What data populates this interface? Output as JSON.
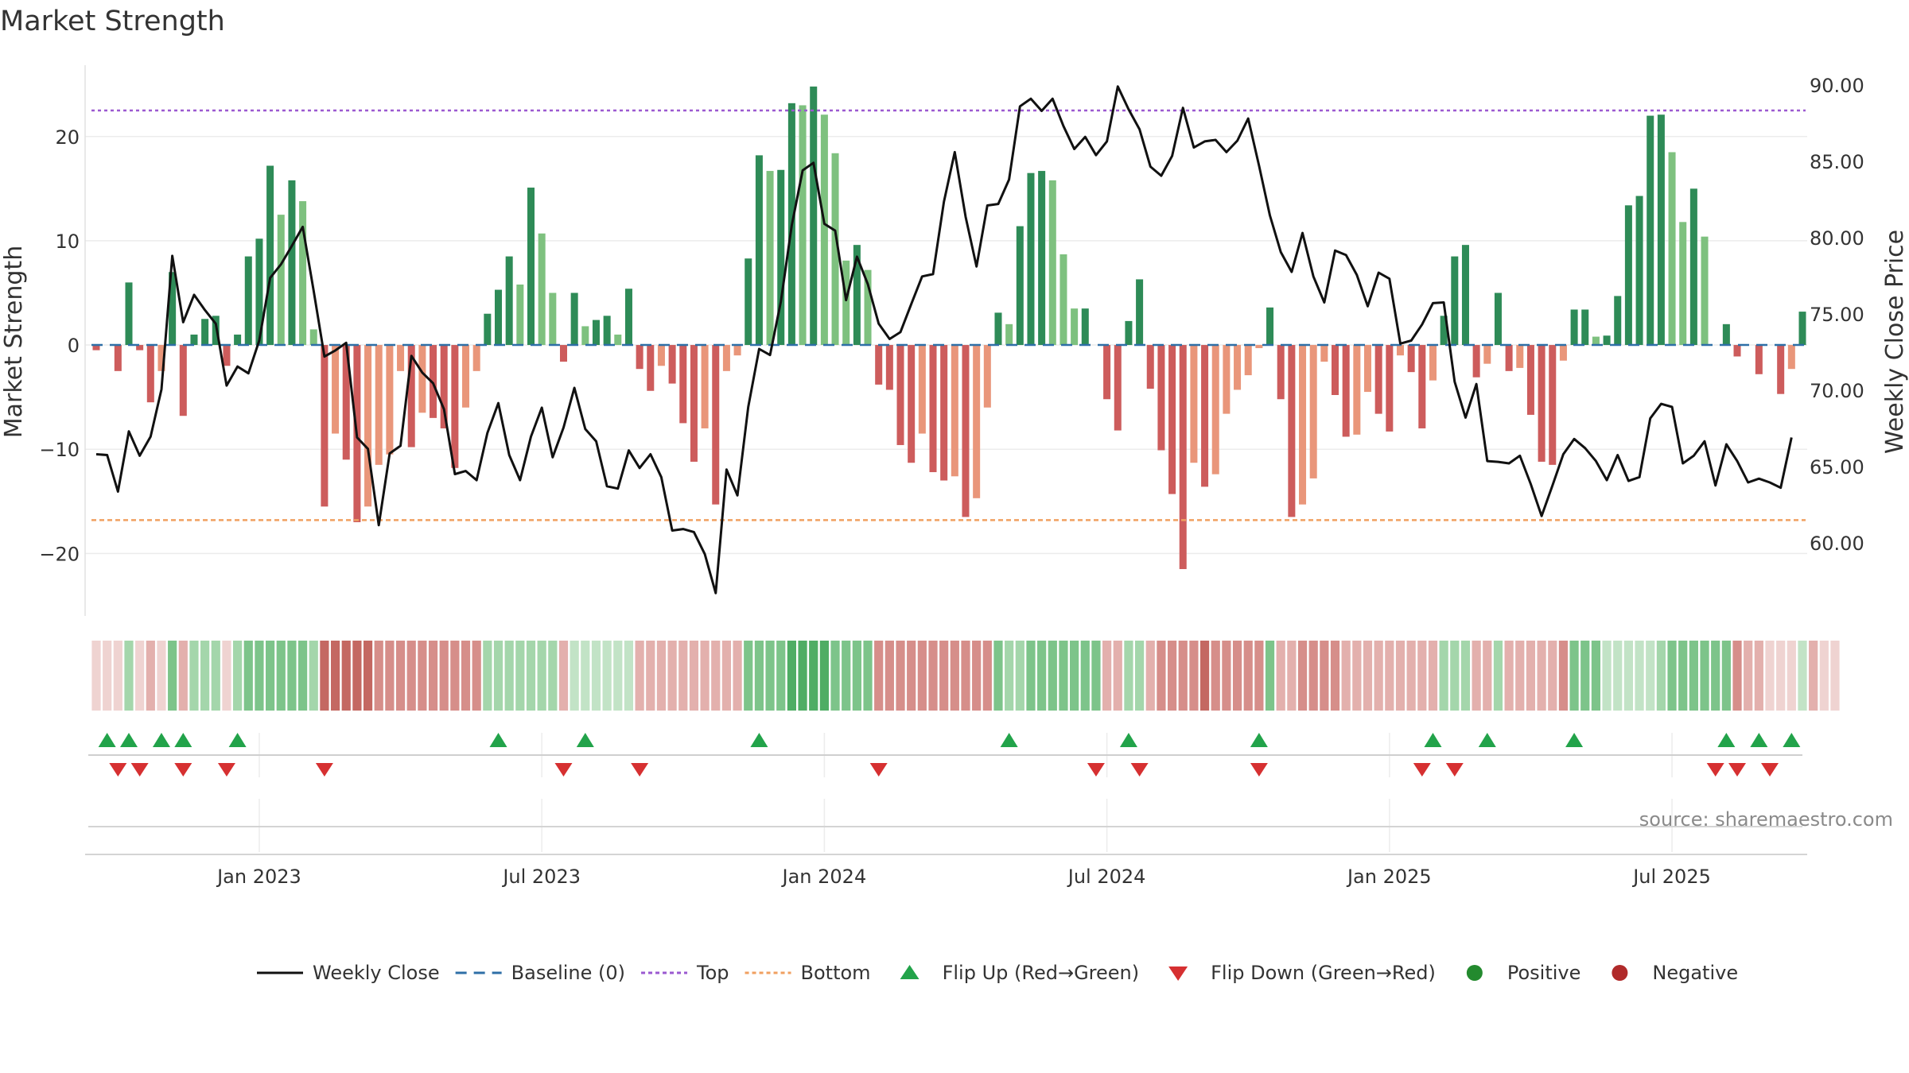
{
  "chart_data": {
    "type": "bar",
    "title": "Market Strength",
    "ylabel_left": "Market Strength",
    "ylabel_right": "Weekly Close Price",
    "source": "source: sharemaestro.com",
    "left_ylim": [
      -26,
      27
    ],
    "left_yticks": [
      20,
      10,
      0,
      -10,
      -20
    ],
    "left_ytick_labels": [
      "20",
      "10",
      "0",
      "−10",
      "−20"
    ],
    "right_ylim": [
      55.2,
      91.4
    ],
    "right_yticks": [
      90,
      85,
      80,
      75,
      70,
      65,
      60
    ],
    "right_ytick_labels": [
      "90.00",
      "85.00",
      "80.00",
      "75.00",
      "70.00",
      "65.00",
      "60.00"
    ],
    "x_ticks": [
      {
        "week": 15,
        "label": "Jan 2023"
      },
      {
        "week": 41,
        "label": "Jul 2023"
      },
      {
        "week": 67,
        "label": "Jan 2024"
      },
      {
        "week": 93,
        "label": "Jul 2024"
      },
      {
        "week": 119,
        "label": "Jan 2025"
      },
      {
        "week": 145,
        "label": "Jul 2025"
      }
    ],
    "start_week": "2022-10-07",
    "top_threshold": 22.5,
    "bottom_threshold": -16.8,
    "strength": [
      -0.5,
      0,
      -2.5,
      6,
      -0.5,
      -5.5,
      -2.5,
      7,
      -6.8,
      1,
      2.5,
      2.8,
      -2,
      1,
      8.5,
      10.2,
      17.2,
      12.5,
      15.8,
      13.8,
      1.5,
      -15.5,
      -8.5,
      -11,
      -17,
      -15.5,
      -11.5,
      -10.5,
      -2.5,
      -9.8,
      -6.5,
      -7,
      -8,
      -11.8,
      -6,
      -2.5,
      3,
      5.3,
      8.5,
      5.8,
      15.1,
      10.7,
      5,
      -1.6,
      5,
      1.8,
      2.4,
      2.8,
      1,
      5.4,
      -2.3,
      -4.4,
      -2,
      -3.7,
      -7.5,
      -11.2,
      -8,
      -15.3,
      -2.5,
      -1,
      8.3,
      18.2,
      16.7,
      16.8,
      23.2,
      23,
      24.8,
      22.1,
      18.4,
      8.1,
      9.6,
      7.2,
      -3.8,
      -4.3,
      -9.6,
      -11.3,
      -8.5,
      -12.2,
      -13,
      -12.6,
      -16.5,
      -14.7,
      -6,
      3.1,
      2,
      11.4,
      16.5,
      16.7,
      15.8,
      8.7,
      3.5,
      3.5,
      0,
      -5.2,
      -8.2,
      2.3,
      6.3,
      -4.2,
      -10.1,
      -14.3,
      -21.5,
      -11.3,
      -13.6,
      -12.4,
      -6.6,
      -4.3,
      -2.9,
      -0.3,
      3.6,
      -5.2,
      -16.5,
      -15.3,
      -12.8,
      -1.6,
      -4.8,
      -8.8,
      -8.6,
      -4.5,
      -6.6,
      -8.3,
      -1,
      -2.6,
      -8,
      -3.4,
      2.8,
      8.5,
      9.6,
      -3.1,
      -1.8,
      5,
      -2.5,
      -2.2,
      -6.7,
      -11.2,
      -11.5,
      -1.5,
      3.4,
      3.4,
      0.8,
      0.9,
      4.7,
      13.4,
      14.3,
      22,
      22.1,
      18.5,
      11.8,
      15,
      10.4,
      0,
      2,
      -1.1,
      0,
      -2.8,
      0,
      -4.7,
      -2.3,
      3.2
    ],
    "weekly_close": [
      65.8,
      65.75,
      63.35,
      67.3,
      65.7,
      66.95,
      70.05,
      78.8,
      74.45,
      76.25,
      75.25,
      74.35,
      70.3,
      71.55,
      71.1,
      73.25,
      77.35,
      78.25,
      79.45,
      80.7,
      76.55,
      72.2,
      72.6,
      73.1,
      66.9,
      66.15,
      61.15,
      65.85,
      66.35,
      72.25,
      71.15,
      70.45,
      68.75,
      64.5,
      64.7,
      64.1,
      67.2,
      69.15,
      65.75,
      64.1,
      66.95,
      68.85,
      65.6,
      67.55,
      70.15,
      67.45,
      66.65,
      63.7,
      63.55,
      66.05,
      64.9,
      65.8,
      64.3,
      60.8,
      60.9,
      60.7,
      59.25,
      56.7,
      64.8,
      63.1,
      68.9,
      72.7,
      72.3,
      75.8,
      80.8,
      84.4,
      84.9,
      80.9,
      80.45,
      75.9,
      78.75,
      76.95,
      74.35,
      73.35,
      73.8,
      75.65,
      77.45,
      77.6,
      82.35,
      85.6,
      81.35,
      78.1,
      82.1,
      82.2,
      83.8,
      88.6,
      89.1,
      88.3,
      89.1,
      87.3,
      85.8,
      86.6,
      85.4,
      86.3,
      89.9,
      88.4,
      87.1,
      84.65,
      84.05,
      85.35,
      88.5,
      85.9,
      86.3,
      86.4,
      85.6,
      86.35,
      87.8,
      84.7,
      81.45,
      79.05,
      77.75,
      80.3,
      77.45,
      75.75,
      79.15,
      78.85,
      77.55,
      75.5,
      77.7,
      77.3,
      73.05,
      73.25,
      74.3,
      75.7,
      75.75,
      70.55,
      68.2,
      70.4,
      65.35,
      65.3,
      65.2,
      65.7,
      63.85,
      61.75,
      63.75,
      65.8,
      66.8,
      66.2,
      65.35,
      64.1,
      65.75,
      64.05,
      64.3,
      68.15,
      69.1,
      68.9,
      65.2,
      65.7,
      66.65,
      63.75,
      66.45,
      65.35,
      63.95,
      64.2,
      63.95,
      63.6,
      66.9
    ],
    "regime_shades": [
      1,
      1,
      1,
      2,
      1,
      2,
      1,
      3,
      2,
      2,
      2,
      2,
      1,
      2,
      3,
      3,
      3,
      3,
      3,
      3,
      2,
      4,
      4,
      4,
      4,
      4,
      3,
      3,
      3,
      3,
      3,
      3,
      3,
      3,
      3,
      3,
      2,
      2,
      2,
      2,
      2,
      2,
      2,
      2,
      1,
      1,
      1,
      1,
      1,
      1,
      2,
      2,
      2,
      2,
      2,
      2,
      2,
      2,
      2,
      2,
      3,
      3,
      3,
      3,
      4,
      4,
      4,
      4,
      3,
      3,
      3,
      3,
      3,
      3,
      3,
      3,
      3,
      3,
      3,
      3,
      3,
      3,
      3,
      3,
      2,
      2,
      3,
      3,
      3,
      3,
      3,
      3,
      3,
      2,
      2,
      2,
      2,
      2,
      3,
      3,
      3,
      3,
      4,
      3,
      3,
      3,
      3,
      3,
      3,
      2,
      2,
      3,
      3,
      3,
      3,
      2,
      2,
      2,
      2,
      2,
      2,
      2,
      2,
      2,
      2,
      2,
      2,
      2,
      2,
      2,
      2,
      2,
      2,
      2,
      2,
      3,
      3,
      3,
      3,
      1,
      1,
      1,
      1,
      1,
      2,
      3,
      3,
      3,
      3,
      3,
      3,
      3,
      2,
      2,
      1,
      1,
      1,
      1,
      2,
      1,
      1
    ],
    "flip_up_weeks": [
      1,
      3,
      6,
      8,
      13,
      37,
      45,
      61,
      84,
      95,
      107,
      123,
      128,
      136,
      150,
      153,
      156
    ],
    "flip_down_weeks": [
      2,
      4,
      8,
      12,
      21,
      43,
      50,
      72,
      92,
      96,
      107,
      122,
      125,
      149,
      151,
      154
    ],
    "legend": [
      {
        "label": "Weekly Close",
        "kind": "line",
        "color": "#111111"
      },
      {
        "label": "Baseline (0)",
        "kind": "dash",
        "color": "#2e6fa7"
      },
      {
        "label": "Top",
        "kind": "dot",
        "color": "#9b59d0"
      },
      {
        "label": "Bottom",
        "kind": "dot",
        "color": "#f0a060"
      },
      {
        "label": "Flip Up (Red→Green)",
        "kind": "up",
        "color": "#22a34a"
      },
      {
        "label": "Flip Down (Green→Red)",
        "kind": "down",
        "color": "#d63031"
      },
      {
        "label": "Positive",
        "kind": "circle",
        "color": "#238a2e"
      },
      {
        "label": "Negative",
        "kind": "circle",
        "color": "#b02a2a"
      }
    ],
    "colors": {
      "pos_strong": "#2e8b57",
      "pos_light": "#7ec17f",
      "neg_strong": "#cd5c5c",
      "neg_light": "#e9967a",
      "shade_pos": [
        "#c2e3c6",
        "#a4d6ab",
        "#7dc48a",
        "#4fad64"
      ],
      "shade_neg": [
        "#efd3d1",
        "#e3b0ad",
        "#d68e8a",
        "#c46862"
      ]
    }
  }
}
